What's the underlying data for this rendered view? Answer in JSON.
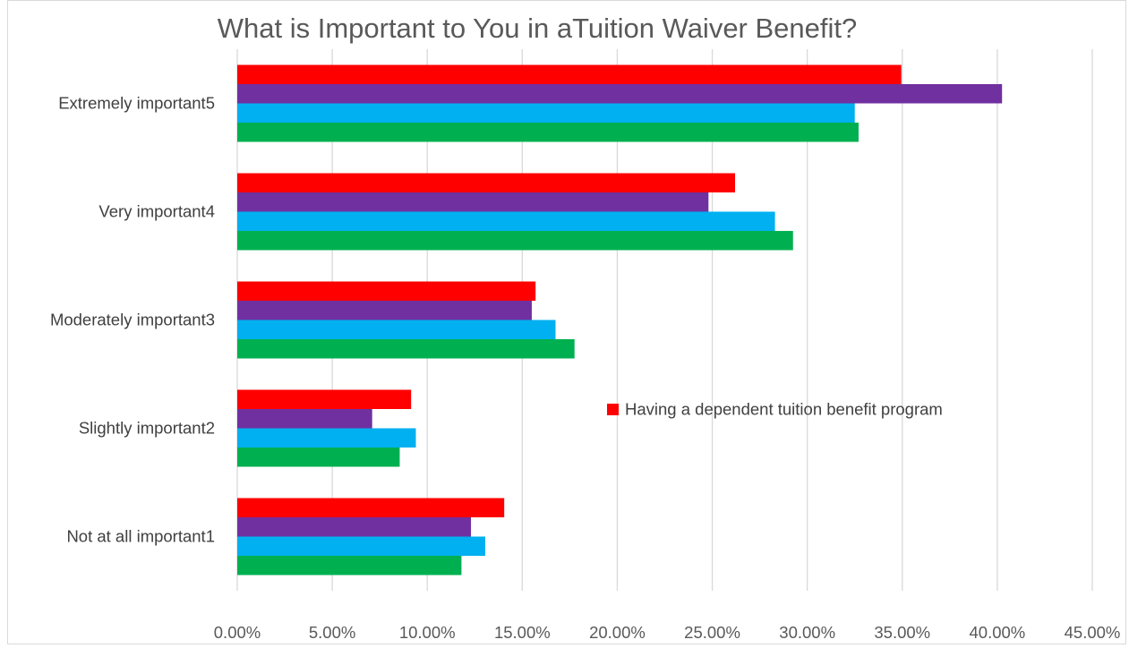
{
  "chart_data": {
    "type": "bar",
    "orientation": "horizontal",
    "title": "What is Important to You in aTuition Waiver Benefit?",
    "categories": [
      "Extremely important5",
      "Very important4",
      "Moderately important3",
      "Slightly important2",
      "Not at all important1"
    ],
    "series": [
      {
        "name": "Having a dependent tuition benefit program",
        "color": "#ff0000",
        "values": [
          34.95,
          26.2,
          15.7,
          9.15,
          14.05
        ]
      },
      {
        "color": "#7030a0",
        "values": [
          40.25,
          24.8,
          15.5,
          7.1,
          12.3
        ]
      },
      {
        "color": "#00b0f0",
        "values": [
          32.5,
          28.3,
          16.75,
          9.4,
          13.05
        ]
      },
      {
        "color": "#00b050",
        "values": [
          32.7,
          29.25,
          17.75,
          8.55,
          11.8
        ]
      }
    ],
    "xlim": [
      0,
      45
    ],
    "xticks": [
      0,
      5,
      10,
      15,
      20,
      25,
      30,
      35,
      40,
      45
    ],
    "xtick_labels": [
      "0.00%",
      "5.00%",
      "10.00%",
      "15.00%",
      "20.00%",
      "25.00%",
      "30.00%",
      "35.00%",
      "40.00%",
      "45.00%"
    ],
    "grid": "vertical",
    "legend": "inside-right",
    "legend_entries": [
      "Having a dependent tuition benefit program"
    ]
  }
}
